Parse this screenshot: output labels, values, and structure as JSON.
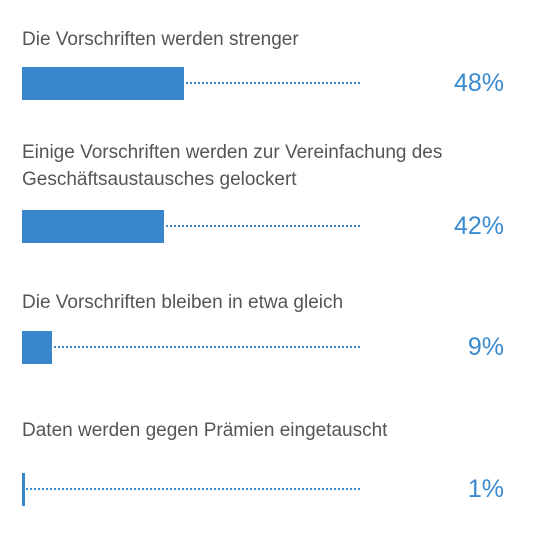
{
  "chart_data": {
    "type": "bar",
    "orientation": "horizontal",
    "categories": [
      "Die Vorschriften werden strenger",
      "Einige Vorschriften werden zur Vereinfachung des Geschäftsaustausches gelockert",
      "Die Vorschriften bleiben in etwa gleich",
      "Daten werden gegen Prämien eingetauscht"
    ],
    "values": [
      48,
      42,
      9,
      1
    ],
    "value_labels": [
      "48%",
      "42%",
      "9%",
      "1%"
    ],
    "unit": "%",
    "xlim": [
      0,
      100
    ],
    "colors": {
      "bar": "#3a86cc",
      "track_dots": "#3a8ad0",
      "label_text": "#555555",
      "value_text": "#3a8ad0"
    }
  }
}
